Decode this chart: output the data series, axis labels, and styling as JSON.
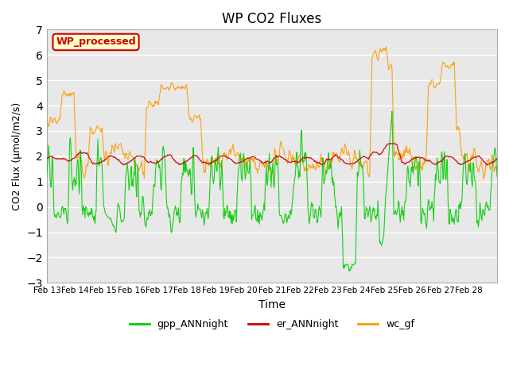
{
  "title": "WP CO2 Fluxes",
  "xlabel": "Time",
  "ylabel": "CO2 Flux (μmol/m2/s)",
  "ylim": [
    -3.0,
    7.0
  ],
  "yticks": [
    -3.0,
    -2.0,
    -1.0,
    0.0,
    1.0,
    2.0,
    3.0,
    4.0,
    5.0,
    6.0,
    7.0
  ],
  "date_labels": [
    "Feb 13",
    "Feb 14",
    "Feb 15",
    "Feb 16",
    "Feb 17",
    "Feb 18",
    "Feb 19",
    "Feb 20",
    "Feb 21",
    "Feb 22",
    "Feb 23",
    "Feb 24",
    "Feb 25",
    "Feb 26",
    "Feb 27",
    "Feb 28"
  ],
  "n_days": 16,
  "points_per_day": 48,
  "color_gpp": "#00cc00",
  "color_er": "#cc0000",
  "color_wc": "#ff9900",
  "legend_label": "WP_processed",
  "legend_bg": "#ffffcc",
  "legend_edge": "#cc0000",
  "bg_color": "#e8e8e8",
  "grid_color": "#ffffff",
  "series_colors": [
    "#00cc00",
    "#cc0000",
    "#ff9900"
  ],
  "series_labels": [
    "gpp_ANNnight",
    "er_ANNnight",
    "wc_gf"
  ]
}
